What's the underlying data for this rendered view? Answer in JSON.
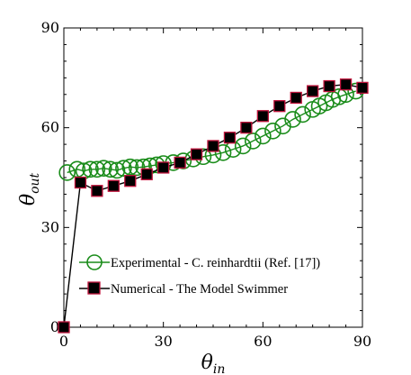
{
  "chart_data": {
    "type": "scatter",
    "title": "",
    "xlabel": {
      "base": "θ",
      "sub": "in"
    },
    "ylabel": {
      "base": "θ",
      "sub": "out"
    },
    "xlim": [
      0,
      90
    ],
    "ylim": [
      0,
      90
    ],
    "xticks": [
      0,
      30,
      60,
      90
    ],
    "yticks": [
      0,
      30,
      60,
      90
    ],
    "x_tick_labels": [
      "0",
      "30",
      "60",
      "90"
    ],
    "y_tick_labels": [
      "0",
      "30",
      "60",
      "90"
    ],
    "grid": false,
    "legend_position": "lower-left",
    "series": [
      {
        "name": "Experimental - C. reinhardtii (Ref. [17])",
        "marker": "open-circle",
        "color": "#1a8c1a",
        "points": [
          [
            1,
            46.5
          ],
          [
            4,
            47.5
          ],
          [
            6,
            47.0
          ],
          [
            8,
            47.5
          ],
          [
            10,
            47.5
          ],
          [
            12,
            47.8
          ],
          [
            14,
            47.5
          ],
          [
            16,
            47.2
          ],
          [
            18,
            47.8
          ],
          [
            20,
            48.2
          ],
          [
            22,
            48.0
          ],
          [
            24,
            48.2
          ],
          [
            26,
            48.5
          ],
          [
            28,
            48.8
          ],
          [
            30,
            49.2
          ],
          [
            33,
            49.5
          ],
          [
            36,
            50.0
          ],
          [
            39,
            50.6
          ],
          [
            42,
            51.3
          ],
          [
            45,
            51.8
          ],
          [
            48,
            52.5
          ],
          [
            51,
            53.5
          ],
          [
            54,
            54.5
          ],
          [
            57,
            56.0
          ],
          [
            60,
            57.5
          ],
          [
            63,
            59.0
          ],
          [
            66,
            60.5
          ],
          [
            69,
            62.5
          ],
          [
            72,
            64.0
          ],
          [
            75,
            65.5
          ],
          [
            77,
            66.5
          ],
          [
            79,
            67.5
          ],
          [
            81,
            68.5
          ],
          [
            83,
            69.3
          ],
          [
            85,
            70.0
          ],
          [
            88,
            71.0
          ]
        ]
      },
      {
        "name": "Numerical - The Model Swimmer",
        "marker": "filled-square",
        "color": "#000000",
        "edge_color": "#c0143c",
        "points": [
          [
            0,
            0
          ],
          [
            5,
            43.5
          ],
          [
            10,
            41.0
          ],
          [
            15,
            42.5
          ],
          [
            20,
            44.0
          ],
          [
            25,
            46.0
          ],
          [
            30,
            48.0
          ],
          [
            35,
            49.5
          ],
          [
            40,
            52.0
          ],
          [
            45,
            54.5
          ],
          [
            50,
            57.0
          ],
          [
            55,
            60.0
          ],
          [
            60,
            63.5
          ],
          [
            65,
            66.5
          ],
          [
            70,
            69.0
          ],
          [
            75,
            71.0
          ],
          [
            80,
            72.5
          ],
          [
            85,
            73.0
          ],
          [
            90,
            72.0
          ]
        ]
      }
    ]
  }
}
